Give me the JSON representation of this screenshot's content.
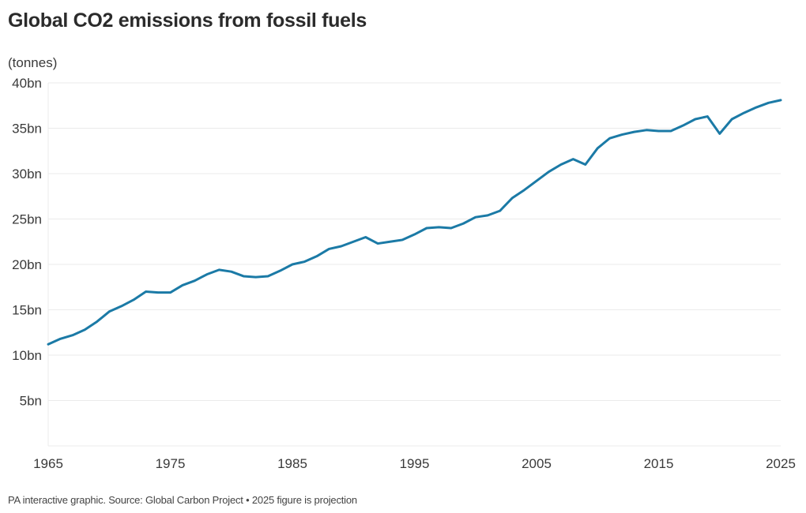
{
  "header": {
    "title": "Global CO2 emissions from fossil fuels",
    "unit_label": "(tonnes)"
  },
  "footer": {
    "source": "PA interactive graphic. Source: Global Carbon Project • 2025 figure is projection"
  },
  "colors": {
    "line": "#1b7aa6",
    "grid": "#ebebeb",
    "text": "#3a3a3a"
  },
  "chart_data": {
    "type": "line",
    "title": "Global CO2 emissions from fossil fuels",
    "xlabel": "",
    "ylabel": "(tonnes)",
    "xlim": [
      1965,
      2025
    ],
    "ylim": [
      0,
      40
    ],
    "grid": true,
    "legend": "none",
    "x_ticks": [
      1965,
      1975,
      1985,
      1995,
      2005,
      2015,
      2025
    ],
    "x_tick_labels": [
      "1965",
      "1975",
      "1985",
      "1995",
      "2005",
      "2015",
      "2025"
    ],
    "y_ticks": [
      5,
      10,
      15,
      20,
      25,
      30,
      35,
      40
    ],
    "y_tick_labels": [
      "5bn",
      "10bn",
      "15bn",
      "20bn",
      "25bn",
      "30bn",
      "35bn",
      "40bn"
    ],
    "note": "2025 figure is projection",
    "series": [
      {
        "name": "Global CO2 emissions from fossil fuels (bn tonnes)",
        "x": [
          1965,
          1966,
          1967,
          1968,
          1969,
          1970,
          1971,
          1972,
          1973,
          1974,
          1975,
          1976,
          1977,
          1978,
          1979,
          1980,
          1981,
          1982,
          1983,
          1984,
          1985,
          1986,
          1987,
          1988,
          1989,
          1990,
          1991,
          1992,
          1993,
          1994,
          1995,
          1996,
          1997,
          1998,
          1999,
          2000,
          2001,
          2002,
          2003,
          2004,
          2005,
          2006,
          2007,
          2008,
          2009,
          2010,
          2011,
          2012,
          2013,
          2014,
          2015,
          2016,
          2017,
          2018,
          2019,
          2020,
          2021,
          2022,
          2023,
          2024,
          2025
        ],
        "values": [
          11.2,
          11.8,
          12.2,
          12.8,
          13.7,
          14.8,
          15.4,
          16.1,
          17.0,
          16.9,
          16.9,
          17.7,
          18.2,
          18.9,
          19.4,
          19.2,
          18.7,
          18.6,
          18.7,
          19.3,
          20.0,
          20.3,
          20.9,
          21.7,
          22.0,
          22.5,
          23.0,
          22.3,
          22.5,
          22.7,
          23.3,
          24.0,
          24.1,
          24.0,
          24.5,
          25.2,
          25.4,
          25.9,
          27.3,
          28.2,
          29.2,
          30.2,
          31.0,
          31.6,
          31.0,
          32.8,
          33.9,
          34.3,
          34.6,
          34.8,
          34.7,
          34.7,
          35.3,
          36.0,
          36.3,
          34.4,
          36.0,
          36.7,
          37.3,
          37.8,
          38.1
        ]
      }
    ]
  }
}
